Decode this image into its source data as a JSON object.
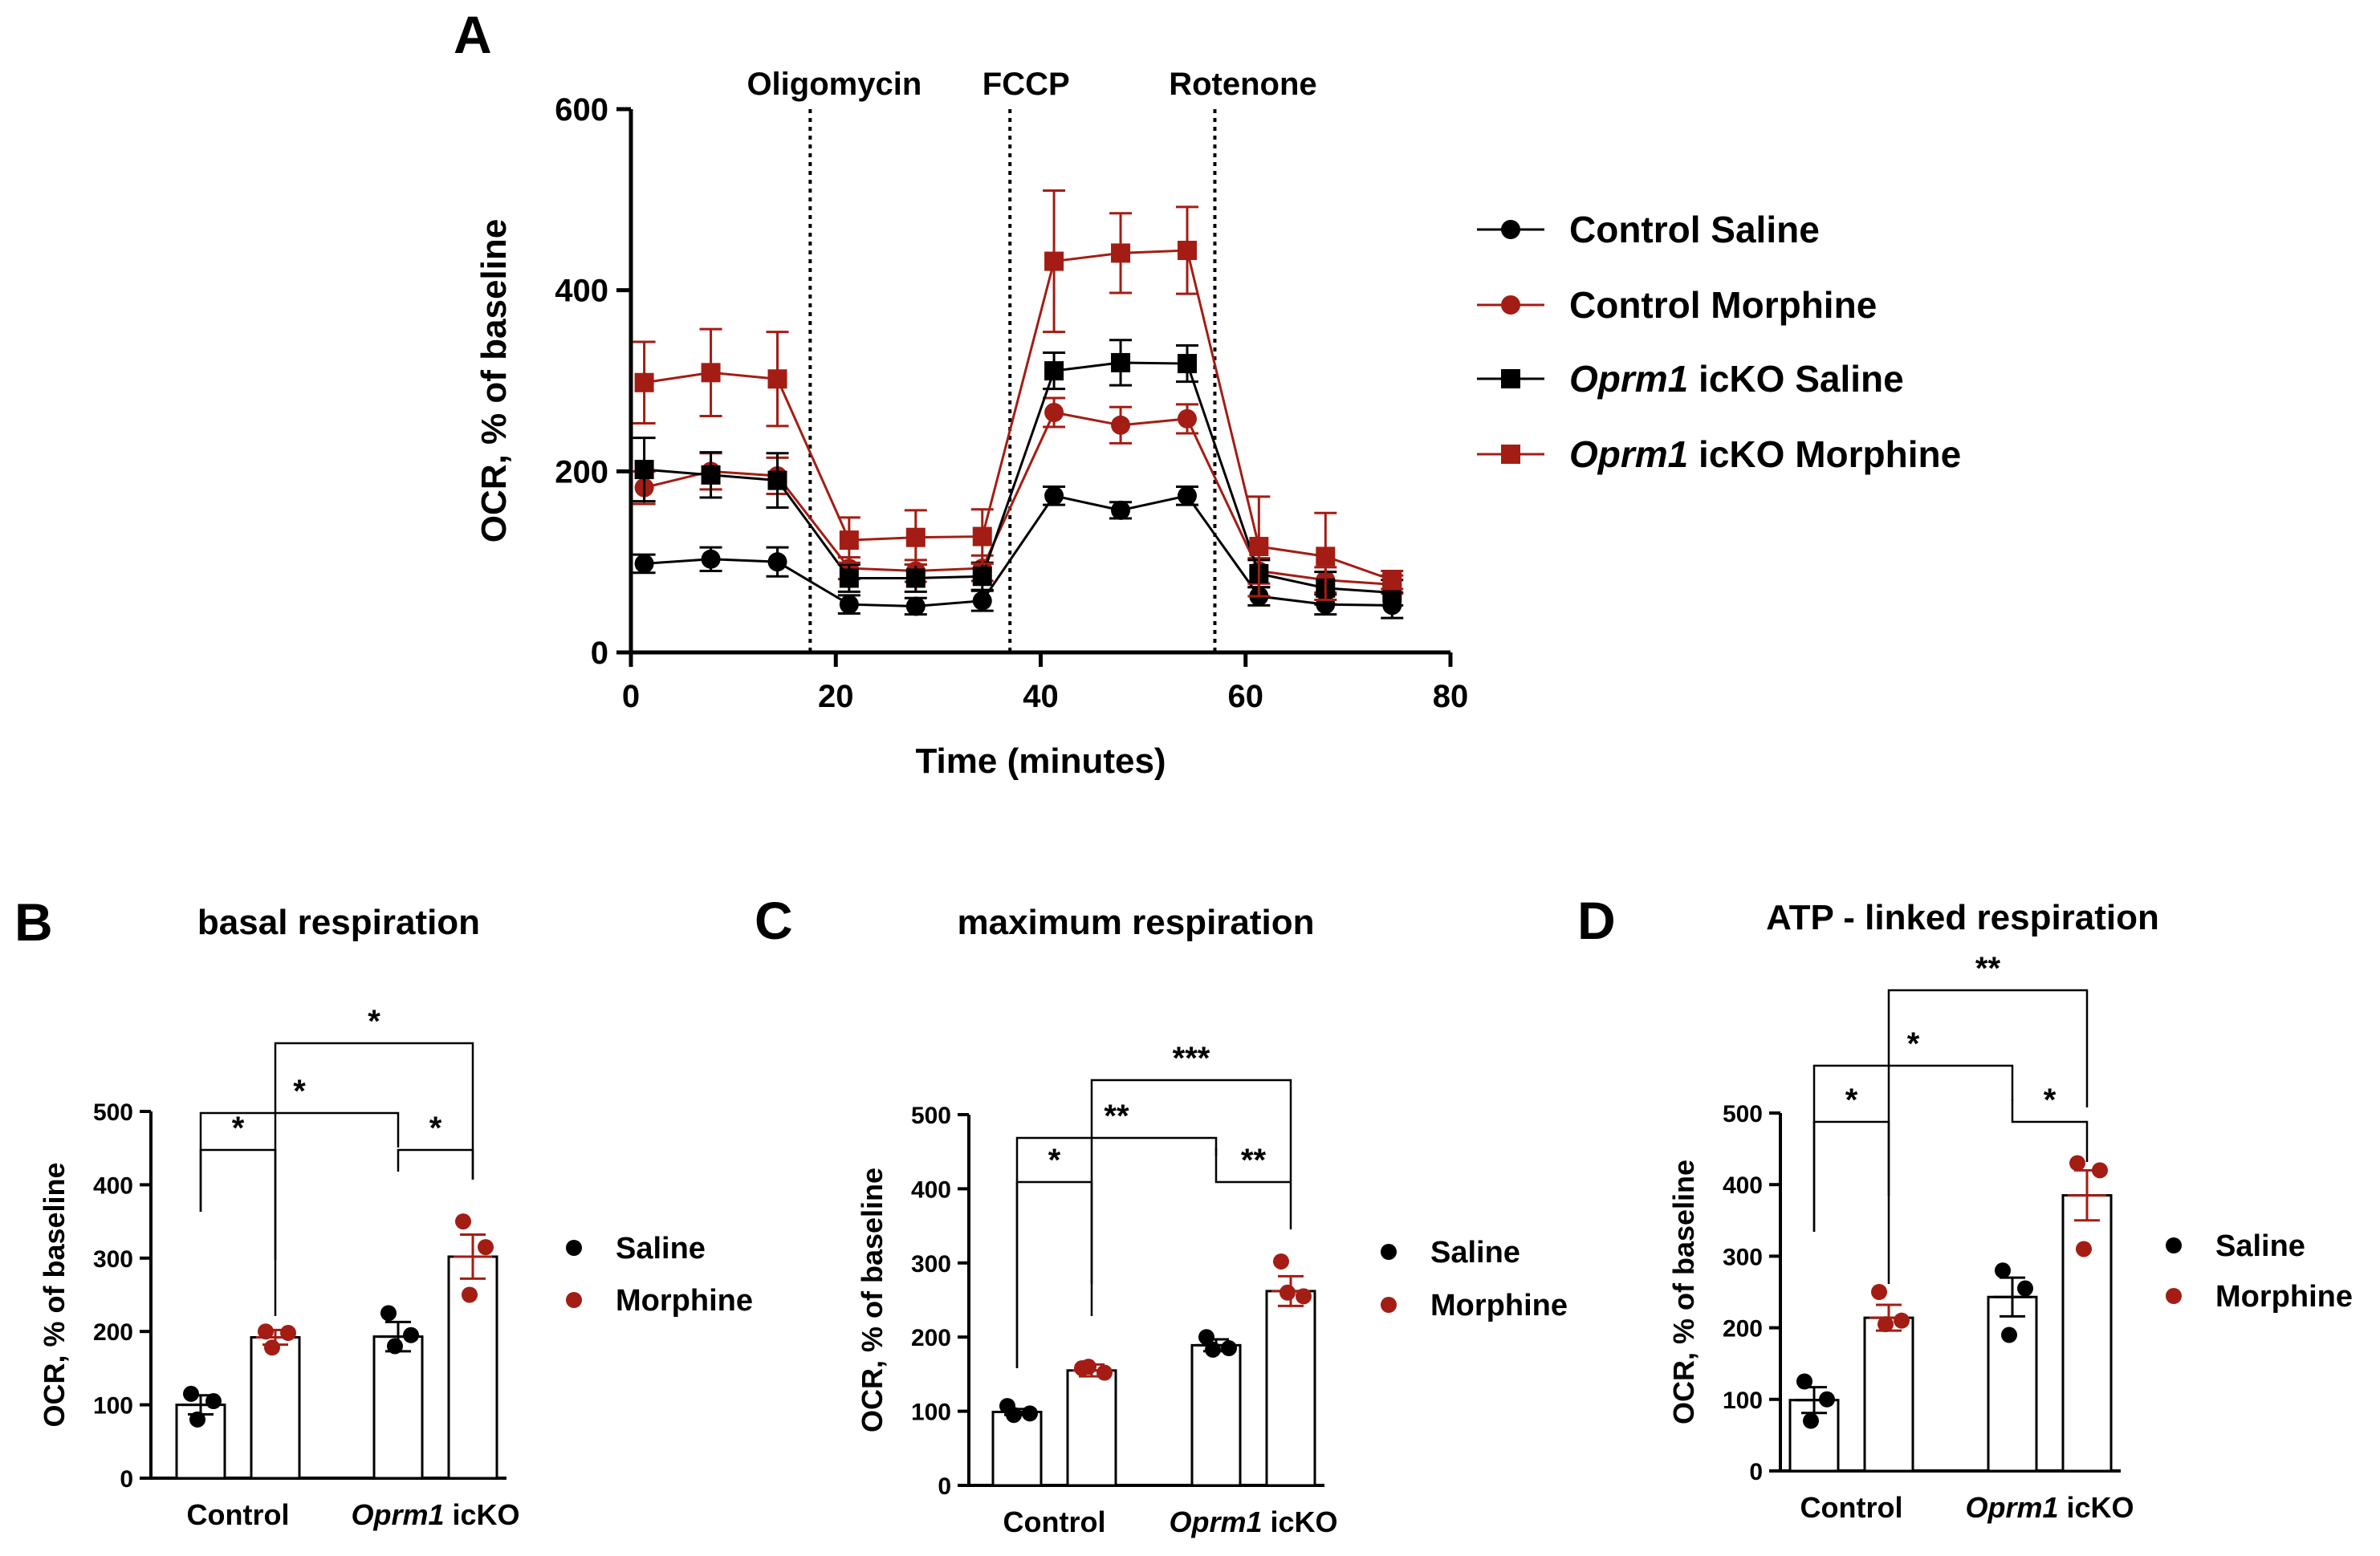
{
  "colors": {
    "saline": "#000000",
    "morphine": "#a31d14"
  },
  "chart_data": [
    {
      "panel": "A",
      "type": "line",
      "xlabel": "Time (minutes)",
      "ylabel": "OCR, % of baseline",
      "xlim": [
        0,
        80
      ],
      "ylim": [
        0,
        600
      ],
      "xticks": [
        0,
        20,
        40,
        60,
        80
      ],
      "yticks": [
        0,
        200,
        400,
        600
      ],
      "x": [
        1.3,
        7.8,
        14.3,
        21.3,
        27.8,
        34.3,
        41.3,
        47.8,
        54.3,
        61.3,
        67.8,
        74.3
      ],
      "injections": [
        {
          "label": "Oligomycin",
          "x": 17.5
        },
        {
          "label": "FCCP",
          "x": 37
        },
        {
          "label": "Rotenone",
          "x": 57
        }
      ],
      "series": [
        {
          "name": "Control Saline",
          "name_parts": [
            "",
            "Control Saline"
          ],
          "marker": "circle",
          "color_key": "saline",
          "values": [
            98,
            103,
            100,
            53,
            51,
            57,
            173,
            157,
            173,
            62,
            53,
            52
          ],
          "errors": [
            10,
            13,
            16,
            10,
            9,
            11,
            10,
            9,
            10,
            10,
            11,
            14
          ]
        },
        {
          "name": "Control Morphine",
          "name_parts": [
            "",
            "Control Morphine"
          ],
          "marker": "circle",
          "color_key": "morphine",
          "values": [
            182,
            200,
            195,
            93,
            90,
            93,
            265,
            251,
            258,
            90,
            80,
            75
          ],
          "errors": [
            18,
            20,
            20,
            12,
            12,
            14,
            16,
            20,
            16,
            14,
            14,
            10
          ]
        },
        {
          "name": "Oprm1 icKO Saline",
          "name_parts": [
            "Oprm1",
            " icKO Saline"
          ],
          "marker": "square",
          "color_key": "saline",
          "values": [
            202,
            196,
            190,
            82,
            82,
            84,
            311,
            320,
            319,
            87,
            71,
            66
          ],
          "errors": [
            35,
            25,
            30,
            15,
            15,
            15,
            20,
            25,
            20,
            15,
            18,
            14
          ]
        },
        {
          "name": "Oprm1 icKO Morphine",
          "name_parts": [
            "Oprm1",
            " icKO Morphine"
          ],
          "marker": "square",
          "color_key": "morphine",
          "values": [
            298,
            309,
            302,
            124,
            127,
            128,
            432,
            441,
            444,
            117,
            106,
            80
          ],
          "errors": [
            45,
            48,
            52,
            25,
            30,
            30,
            78,
            44,
            48,
            55,
            48,
            10
          ]
        }
      ]
    },
    {
      "panel": "B",
      "type": "bar",
      "title": "basal respiration",
      "ylabel": "OCR, % of baseline",
      "ylim": [
        0,
        500
      ],
      "yticks": [
        0,
        100,
        200,
        300,
        400,
        500
      ],
      "groups": [
        {
          "italic": "",
          "rest": "Control"
        },
        {
          "italic": "Oprm1",
          "rest": " icKO"
        }
      ],
      "legend": [
        "Saline",
        "Morphine"
      ],
      "bars": [
        {
          "group": 0,
          "treatment": "saline",
          "mean": 100,
          "sem": 13,
          "points": [
            115,
            105,
            80
          ]
        },
        {
          "group": 0,
          "treatment": "morphine",
          "mean": 192,
          "sem": 10,
          "points": [
            200,
            198,
            178
          ]
        },
        {
          "group": 1,
          "treatment": "saline",
          "mean": 193,
          "sem": 20,
          "points": [
            225,
            195,
            180
          ]
        },
        {
          "group": 1,
          "treatment": "morphine",
          "mean": 302,
          "sem": 30,
          "points": [
            350,
            315,
            250
          ]
        }
      ],
      "comparisons": [
        {
          "from": 0,
          "to": 1,
          "label": "*",
          "level": 1
        },
        {
          "from": 2,
          "to": 3,
          "label": "*",
          "level": 1
        },
        {
          "from": 0,
          "to": 2,
          "label": "*",
          "level": 2
        },
        {
          "from": 1,
          "to": 3,
          "label": "*",
          "level": 3
        }
      ]
    },
    {
      "panel": "C",
      "type": "bar",
      "title": "maximum respiration",
      "ylabel": "OCR, % of baseline",
      "ylim": [
        0,
        500
      ],
      "yticks": [
        0,
        100,
        200,
        300,
        400,
        500
      ],
      "groups": [
        {
          "italic": "",
          "rest": "Control"
        },
        {
          "italic": "Oprm1",
          "rest": " icKO"
        }
      ],
      "legend": [
        "Saline",
        "Morphine"
      ],
      "bars": [
        {
          "group": 0,
          "treatment": "saline",
          "mean": 99,
          "sem": 4,
          "points": [
            107,
            97,
            95
          ]
        },
        {
          "group": 0,
          "treatment": "morphine",
          "mean": 155,
          "sem": 8,
          "points": [
            158,
            152,
            160
          ]
        },
        {
          "group": 1,
          "treatment": "saline",
          "mean": 189,
          "sem": 8,
          "points": [
            200,
            185,
            183
          ]
        },
        {
          "group": 1,
          "treatment": "morphine",
          "mean": 262,
          "sem": 20,
          "points": [
            302,
            255,
            260
          ]
        }
      ],
      "comparisons": [
        {
          "from": 0,
          "to": 1,
          "label": "*",
          "level": 1
        },
        {
          "from": 2,
          "to": 3,
          "label": "**",
          "level": 1
        },
        {
          "from": 0,
          "to": 2,
          "label": "**",
          "level": 2
        },
        {
          "from": 1,
          "to": 3,
          "label": "***",
          "level": 3
        }
      ]
    },
    {
      "panel": "D",
      "type": "bar",
      "title": "ATP - linked respiration",
      "ylabel": "OCR, % of baseline",
      "ylim": [
        0,
        500
      ],
      "yticks": [
        0,
        100,
        200,
        300,
        400,
        500
      ],
      "groups": [
        {
          "italic": "",
          "rest": "Control"
        },
        {
          "italic": "Oprm1",
          "rest": " icKO"
        }
      ],
      "legend": [
        "Saline",
        "Morphine"
      ],
      "bars": [
        {
          "group": 0,
          "treatment": "saline",
          "mean": 99,
          "sem": 18,
          "points": [
            125,
            100,
            70
          ]
        },
        {
          "group": 0,
          "treatment": "morphine",
          "mean": 214,
          "sem": 18,
          "points": [
            250,
            210,
            205
          ]
        },
        {
          "group": 1,
          "treatment": "saline",
          "mean": 243,
          "sem": 27,
          "points": [
            280,
            255,
            190
          ]
        },
        {
          "group": 1,
          "treatment": "morphine",
          "mean": 385,
          "sem": 35,
          "points": [
            430,
            420,
            310
          ]
        }
      ],
      "comparisons": [
        {
          "from": 0,
          "to": 1,
          "label": "*",
          "level": 1
        },
        {
          "from": 2,
          "to": 3,
          "label": "*",
          "level": 1
        },
        {
          "from": 0,
          "to": 2,
          "label": "*",
          "level": 2
        },
        {
          "from": 1,
          "to": 3,
          "label": "**",
          "level": 3
        }
      ]
    }
  ]
}
